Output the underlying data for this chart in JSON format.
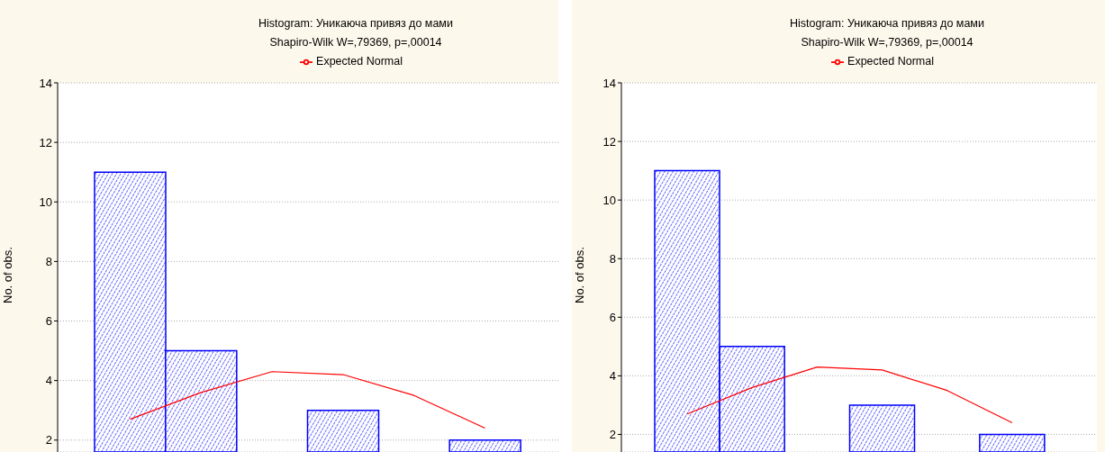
{
  "chart_data": [
    {
      "type": "bar",
      "title": "Histogram: Уникаюча привяз до мами",
      "subtitle": "Shapiro-Wilk W=,79369, p=,00014",
      "ylabel": "No. of obs.",
      "categories": [
        null,
        null,
        null,
        null,
        null,
        null
      ],
      "series": [
        {
          "color": "#0000ff",
          "values": [
            11,
            5,
            null,
            3,
            null,
            2
          ]
        },
        {
          "type": "line",
          "name": "Expected Normal",
          "color": "#ff0000",
          "values": [
            2.7,
            3.6,
            4.3,
            4.2,
            3.5,
            2.4
          ]
        }
      ],
      "ylim": [
        1.6,
        14
      ],
      "yticks": [
        2,
        4,
        6,
        8,
        10,
        12,
        14
      ],
      "grid": "y",
      "legend": "top"
    },
    {
      "type": "bar",
      "title": "Histogram: Уникаюча привяз до мами",
      "subtitle": "Shapiro-Wilk W=,79369, p=,00014",
      "ylabel": "No. of obs.",
      "categories": [
        null,
        null,
        null,
        null,
        null,
        null
      ],
      "series": [
        {
          "color": "#0000ff",
          "values": [
            11,
            5,
            null,
            3,
            null,
            2
          ]
        },
        {
          "type": "line",
          "name": "Expected Normal",
          "color": "#ff0000",
          "values": [
            2.7,
            3.6,
            4.3,
            4.2,
            3.5,
            2.4
          ]
        }
      ],
      "ylim": [
        1.4,
        14
      ],
      "yticks": [
        2,
        4,
        6,
        8,
        10,
        12,
        14
      ],
      "grid": "y",
      "legend": "top"
    }
  ]
}
